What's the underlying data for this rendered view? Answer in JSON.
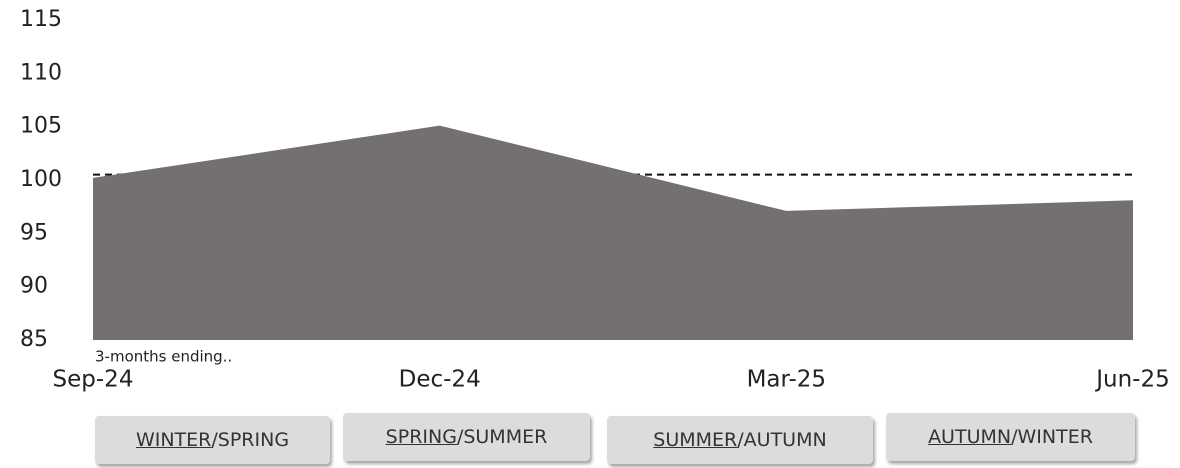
{
  "chart_data": {
    "type": "area",
    "x": [
      "Sep-24",
      "Dec-24",
      "Mar-25",
      "Jun-25"
    ],
    "values": [
      100.2,
      105.1,
      97.1,
      98.1
    ],
    "color": "#757070",
    "reference": 100.5,
    "annotation": "3-months ending..",
    "ylim": [
      85,
      115
    ],
    "yticks": [
      85,
      90,
      95,
      100,
      105,
      110,
      115
    ]
  },
  "buttons": [
    {
      "underlined": "WINTER",
      "rest": "/SPRING"
    },
    {
      "underlined": "SPRING",
      "rest": "/SUMMER"
    },
    {
      "underlined": "SUMMER",
      "rest": "/AUTUMN"
    },
    {
      "underlined": "AUTUMN",
      "rest": "/WINTER"
    }
  ]
}
